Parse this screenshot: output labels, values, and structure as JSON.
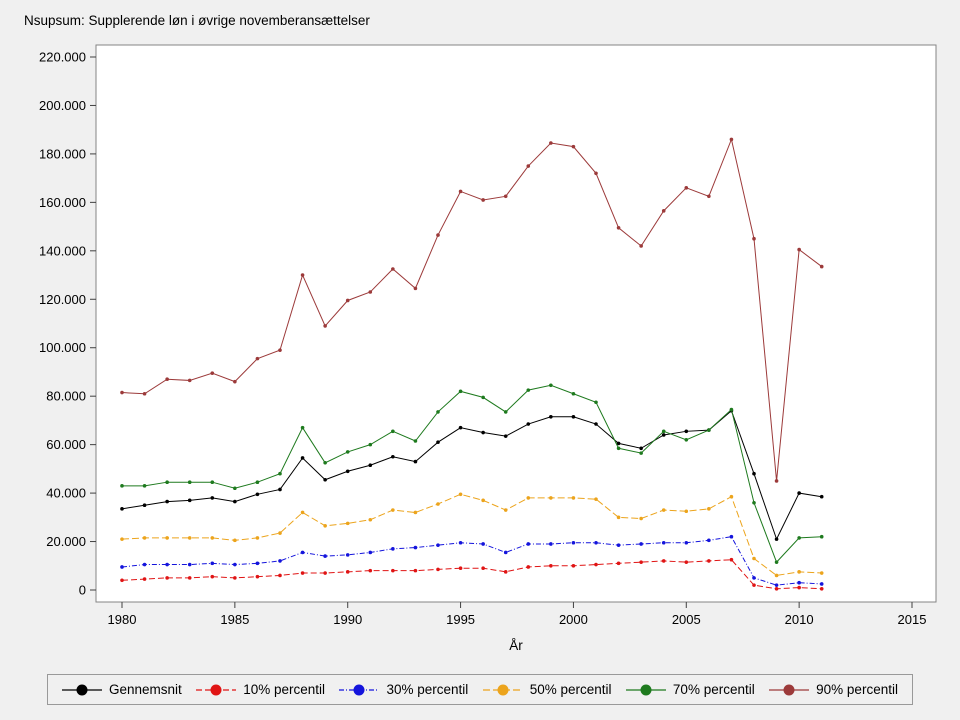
{
  "page": {
    "background": "#f0f0f0",
    "plot_background": "#ffffff",
    "plot_border": "#848484"
  },
  "chart_data": {
    "type": "line",
    "title": "Nsupsum: Supplerende løn i øvrige novemberansættelser",
    "xlabel": "År",
    "ylabel": "",
    "xlim": [
      1980,
      2015
    ],
    "ylim": [
      0,
      220000
    ],
    "grid": false,
    "legend_position": "bottom",
    "x": [
      1980,
      1981,
      1982,
      1983,
      1984,
      1985,
      1986,
      1987,
      1988,
      1989,
      1990,
      1991,
      1992,
      1993,
      1994,
      1995,
      1996,
      1997,
      1998,
      1999,
      2000,
      2001,
      2002,
      2003,
      2004,
      2005,
      2006,
      2007,
      2008,
      2009,
      2010,
      2011
    ],
    "xticks": [
      {
        "v": 1980,
        "label": "1980"
      },
      {
        "v": 1985,
        "label": "1985"
      },
      {
        "v": 1990,
        "label": "1990"
      },
      {
        "v": 1995,
        "label": "1995"
      },
      {
        "v": 2000,
        "label": "2000"
      },
      {
        "v": 2005,
        "label": "2005"
      },
      {
        "v": 2010,
        "label": "2010"
      },
      {
        "v": 2015,
        "label": "2015"
      }
    ],
    "yticks": [
      {
        "v": 0,
        "label": "0"
      },
      {
        "v": 20000,
        "label": "20.000"
      },
      {
        "v": 40000,
        "label": "40.000"
      },
      {
        "v": 60000,
        "label": "60.000"
      },
      {
        "v": 80000,
        "label": "80.000"
      },
      {
        "v": 100000,
        "label": "100.000"
      },
      {
        "v": 120000,
        "label": "120.000"
      },
      {
        "v": 140000,
        "label": "140.000"
      },
      {
        "v": 160000,
        "label": "160.000"
      },
      {
        "v": 180000,
        "label": "180.000"
      },
      {
        "v": 200000,
        "label": "200.000"
      },
      {
        "v": 220000,
        "label": "220.000"
      }
    ],
    "series": [
      {
        "name": "Gennemsnit",
        "color": "#000000",
        "dash": "",
        "values": [
          33500,
          35000,
          36500,
          37000,
          38000,
          36500,
          39500,
          41500,
          54500,
          45500,
          49000,
          51500,
          55000,
          53000,
          61000,
          67000,
          65000,
          63500,
          68500,
          71500,
          71500,
          68500,
          60500,
          58500,
          64000,
          65500,
          66000,
          74000,
          48000,
          21000,
          40000,
          38500
        ]
      },
      {
        "name": "10% percentil",
        "color": "#e01414",
        "dash": "6 3",
        "values": [
          4000,
          4500,
          5000,
          5000,
          5500,
          5000,
          5500,
          6000,
          7000,
          7000,
          7500,
          8000,
          8000,
          8000,
          8500,
          9000,
          9000,
          7500,
          9500,
          10000,
          10000,
          10500,
          11000,
          11500,
          12000,
          11500,
          12000,
          12500,
          2000,
          500,
          1000,
          500
        ]
      },
      {
        "name": "30% percentil",
        "color": "#1414dc",
        "dash": "5 2 1 2",
        "values": [
          9500,
          10500,
          10500,
          10500,
          11000,
          10500,
          11000,
          12000,
          15500,
          14000,
          14500,
          15500,
          17000,
          17500,
          18500,
          19500,
          19000,
          15500,
          19000,
          19000,
          19500,
          19500,
          18500,
          19000,
          19500,
          19500,
          20500,
          22000,
          5000,
          2000,
          3000,
          2500
        ]
      },
      {
        "name": "50% percentil",
        "color": "#eca41c",
        "dash": "7 3",
        "values": [
          21000,
          21500,
          21500,
          21500,
          21500,
          20500,
          21500,
          23500,
          32000,
          26500,
          27500,
          29000,
          33000,
          32000,
          35500,
          39500,
          37000,
          33000,
          38000,
          38000,
          38000,
          37500,
          30000,
          29500,
          33000,
          32500,
          33500,
          38500,
          13000,
          6000,
          7500,
          7000
        ]
      },
      {
        "name": "70% percentil",
        "color": "#1e7a1e",
        "dash": "",
        "values": [
          43000,
          43000,
          44500,
          44500,
          44500,
          42000,
          44500,
          48000,
          67000,
          52500,
          57000,
          60000,
          65500,
          61500,
          73500,
          82000,
          79500,
          73500,
          82500,
          84500,
          81000,
          77500,
          58500,
          56500,
          65500,
          62000,
          66000,
          74500,
          36000,
          11500,
          21500,
          22000
        ]
      },
      {
        "name": "90% percentil",
        "color": "#9c3a3a",
        "dash": "",
        "values": [
          81500,
          81000,
          87000,
          86500,
          89500,
          86000,
          95500,
          99000,
          130000,
          109000,
          119500,
          123000,
          132500,
          124500,
          146500,
          164500,
          161000,
          162500,
          175000,
          184500,
          183000,
          172000,
          149500,
          142000,
          156500,
          166000,
          162500,
          186000,
          145000,
          45000,
          140500,
          133500
        ]
      }
    ]
  }
}
